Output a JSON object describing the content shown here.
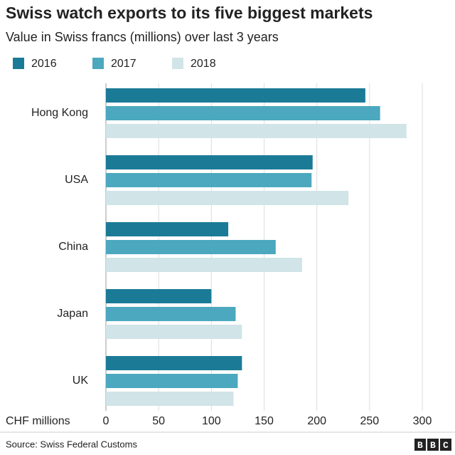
{
  "chart_data": {
    "type": "hbar",
    "title": "Swiss watch exports to its five biggest markets",
    "subtitle": "Value in Swiss francs (millions) over last 3 years",
    "x_label": "CHF millions",
    "categories": [
      "Hong Kong",
      "USA",
      "China",
      "Japan",
      "UK"
    ],
    "series": [
      {
        "name": "2016",
        "color": "#1b7b97",
        "values": [
          246,
          196,
          116,
          100,
          129
        ]
      },
      {
        "name": "2017",
        "color": "#4ba8be",
        "values": [
          260,
          195,
          161,
          123,
          125
        ]
      },
      {
        "name": "2018",
        "color": "#d1e4e8",
        "values": [
          285,
          230,
          186,
          129,
          121
        ]
      }
    ],
    "xlim": [
      0,
      300
    ],
    "xticks": [
      0,
      50,
      100,
      150,
      200,
      250,
      300
    ],
    "grid": true,
    "source": "Source: Swiss Federal Customs",
    "logo": "BBC"
  }
}
